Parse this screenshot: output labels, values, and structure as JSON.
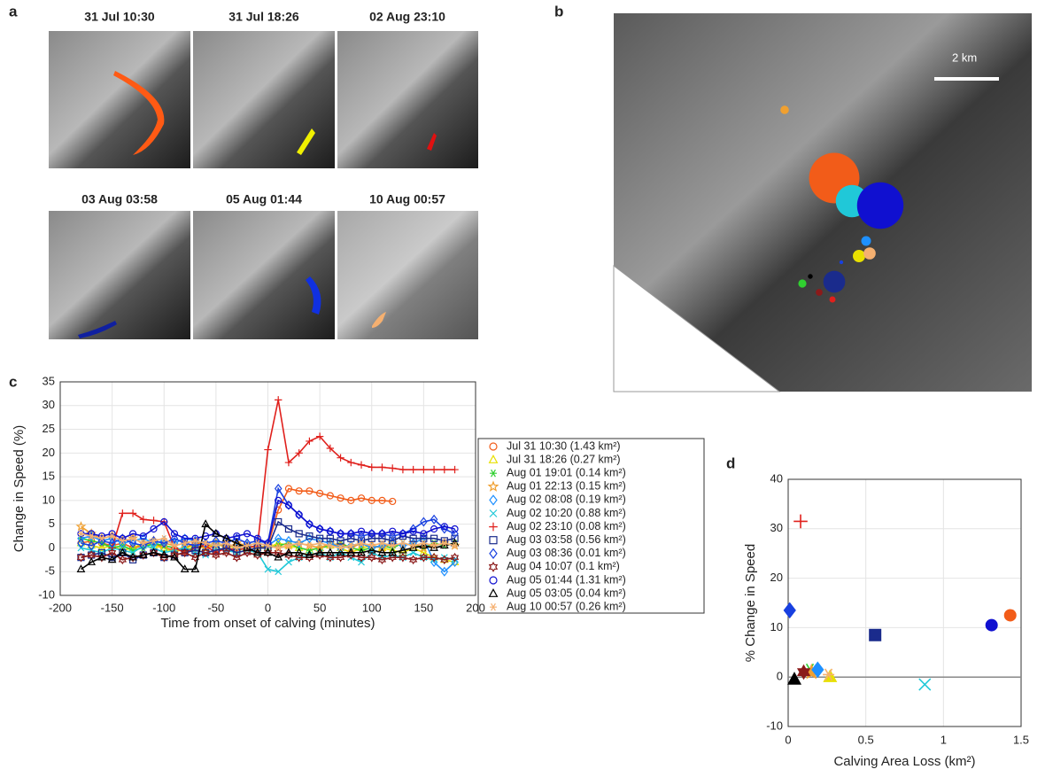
{
  "panel_a": {
    "label": "a",
    "titles": [
      "31 Jul 10:30",
      "31 Jul 18:26",
      "02 Aug 23:10",
      "03 Aug 03:58",
      "05 Aug 01:44",
      "10 Aug 00:57"
    ]
  },
  "panel_b": {
    "label": "b",
    "scale_label": "2 km"
  },
  "chart_data": [
    {
      "type": "line",
      "label": "c",
      "xlabel": "Time from onset of calving (minutes)",
      "ylabel": "Change in Speed (%)",
      "xlim": [
        -200,
        200
      ],
      "xticks": [
        -200,
        -150,
        -100,
        -50,
        0,
        50,
        100,
        150,
        200
      ],
      "ylim": [
        -10,
        35
      ],
      "yticks": [
        -10,
        -5,
        0,
        5,
        10,
        15,
        20,
        25,
        30,
        35
      ],
      "grid": true,
      "x": [
        -180,
        -170,
        -160,
        -150,
        -140,
        -130,
        -120,
        -110,
        -100,
        -90,
        -80,
        -70,
        -60,
        -50,
        -40,
        -30,
        -20,
        -10,
        0,
        10,
        20,
        30,
        40,
        50,
        60,
        70,
        80,
        90,
        100,
        110,
        120,
        130,
        140,
        150,
        160,
        170,
        180
      ],
      "series": [
        {
          "name": "Jul 31 10:30  (1.43 km²)",
          "color": "#f25c19",
          "marker": "circle",
          "values": [
            1,
            1.5,
            1,
            0.5,
            1,
            0,
            0.5,
            1,
            0,
            -0.5,
            0,
            1,
            0.5,
            0,
            -0.5,
            0,
            0.5,
            0,
            0.5,
            8,
            12.5,
            12,
            12,
            11.5,
            11,
            10.5,
            10,
            10.5,
            10,
            10,
            9.8,
            null,
            null,
            null,
            null,
            null,
            null
          ]
        },
        {
          "name": "Jul 31 18:26  (0.27 km²)",
          "color": "#e8e000",
          "marker": "triangle",
          "values": [
            1,
            0.5,
            0,
            0.5,
            -0.5,
            0,
            1,
            0.5,
            0,
            -1,
            0,
            0.5,
            0,
            1,
            0.5,
            0,
            -0.5,
            0,
            0,
            1,
            0.5,
            0,
            -0.5,
            0,
            0.5,
            0,
            -1,
            0,
            0.5,
            0,
            -0.5,
            -1,
            0,
            -1,
            -2,
            -2.5,
            -3
          ]
        },
        {
          "name": "Aug 01 19:01  (0.14 km²)",
          "color": "#30d030",
          "marker": "asterisk",
          "values": [
            2,
            1.5,
            1,
            0,
            0.5,
            -0.5,
            0,
            1,
            0.5,
            0,
            -0.5,
            0,
            0.5,
            1,
            0,
            -0.5,
            0,
            0.5,
            0,
            0.5,
            1,
            0,
            -0.5,
            0,
            0.5,
            1,
            0,
            -0.5,
            0,
            0.5,
            0,
            1,
            0.5,
            0,
            1,
            0.5,
            1
          ]
        },
        {
          "name": "Aug 01 22:13  (0.15 km²)",
          "color": "#f0a030",
          "marker": "pentagram",
          "values": [
            4.5,
            3,
            2,
            2.5,
            1.5,
            2,
            1,
            1.5,
            1,
            0.5,
            1,
            1.5,
            0.5,
            1,
            0,
            1,
            0.5,
            0,
            0.5,
            0,
            0.5,
            1,
            0.5,
            0,
            1,
            0.5,
            0,
            1,
            0.5,
            0,
            1,
            0.5,
            1,
            0,
            0.5,
            1,
            0.5
          ]
        },
        {
          "name": "Aug 02 08:08  (0.19 km²)",
          "color": "#1e90ff",
          "marker": "diamond",
          "values": [
            2,
            2.5,
            1.5,
            2,
            1,
            1.5,
            2,
            1,
            1.5,
            1,
            2,
            1.5,
            1,
            0.5,
            1,
            0,
            0.5,
            1,
            0.5,
            2,
            1.5,
            1,
            2,
            1.5,
            1,
            0,
            0.5,
            1,
            0,
            0.5,
            1,
            0.5,
            1,
            2,
            -3,
            -5,
            -3
          ]
        },
        {
          "name": "Aug 02 10:20  (0.88 km²)",
          "color": "#20c8d8",
          "marker": "x",
          "values": [
            0,
            -0.5,
            -1,
            0,
            -0.5,
            -1,
            0.5,
            0,
            -1,
            -0.5,
            0,
            -1,
            -1.5,
            0,
            -0.5,
            -1,
            -0.5,
            -1,
            -4.5,
            -5,
            -3,
            -2,
            -1.5,
            -1,
            -2,
            -1,
            -2,
            -3,
            -1,
            -2,
            -1.5,
            -2,
            -1,
            -2,
            -2.5,
            -2,
            -2.5
          ]
        },
        {
          "name": "Aug 02 23:10  (0.08 km²)",
          "color": "#e0201c",
          "marker": "plus",
          "values": [
            null,
            null,
            null,
            0,
            7.3,
            7.3,
            6,
            5.8,
            5.5,
            0,
            -1,
            0,
            0.5,
            -1,
            0,
            -0.5,
            0,
            0.5,
            20.7,
            31.2,
            18,
            20,
            22.5,
            23.5,
            21,
            19,
            18,
            17.5,
            17,
            17,
            16.8,
            16.5,
            16.5,
            16.5,
            16.5,
            16.5,
            16.5
          ]
        },
        {
          "name": "Aug 03 03:58  (0.56 km²)",
          "color": "#1a2b8c",
          "marker": "square",
          "values": [
            -2,
            -1.5,
            -1,
            -2,
            -1,
            -2.5,
            -1.5,
            -1,
            -2,
            -1.5,
            -1,
            -0.5,
            -1,
            -0.5,
            0,
            -1,
            -0.5,
            0,
            0,
            5.5,
            4,
            3,
            2.5,
            2,
            2,
            1.5,
            2,
            1.5,
            2,
            2,
            1.5,
            2.5,
            2,
            2,
            2,
            1.5,
            2
          ]
        },
        {
          "name": "Aug 03 08:36  (0.01 km²)",
          "color": "#1840e0",
          "marker": "diamond",
          "values": [
            1,
            0.5,
            1.5,
            1,
            2,
            1,
            0.5,
            1.5,
            1,
            2,
            1,
            0.5,
            1,
            1.5,
            1,
            2,
            1,
            1.5,
            1,
            12.5,
            9,
            7,
            5,
            4,
            3.5,
            3,
            3,
            2.5,
            3,
            3,
            2.5,
            3,
            4,
            5.5,
            6,
            4,
            3
          ]
        },
        {
          "name": "Aug 04 10:07  (0.1 km²)",
          "color": "#8b1a1a",
          "marker": "hexagram",
          "values": [
            -2,
            -1.5,
            -2,
            -1,
            -2.5,
            -2,
            -1.5,
            -1,
            -2,
            -1.5,
            -1,
            -2,
            -1,
            -1.5,
            -1,
            -2,
            -1,
            -1.5,
            -1,
            -1,
            -1.5,
            -2,
            -2,
            -1.5,
            -2,
            -2,
            -1.5,
            -2,
            -2,
            -2.5,
            -2,
            -2,
            -2.5,
            -2,
            -2,
            -2.5,
            -2
          ]
        },
        {
          "name": "Aug 05 01:44  (1.31 km²)",
          "color": "#1010d0",
          "marker": "circle",
          "values": [
            3,
            3,
            2.5,
            3,
            2,
            3,
            2.5,
            4,
            5.5,
            3,
            2,
            2,
            2.5,
            3,
            2,
            2.5,
            3,
            2,
            1,
            10,
            9,
            7,
            5,
            4,
            3.5,
            3,
            3,
            3.5,
            3,
            3,
            3.5,
            3,
            3.5,
            3,
            4,
            4.5,
            4
          ]
        },
        {
          "name": "Aug 05 03:05  (0.04 km²)",
          "color": "#000000",
          "marker": "triangle",
          "values": [
            -4.5,
            -3,
            -2,
            -2.5,
            -1,
            -2,
            -1.5,
            -1,
            -1.5,
            -2,
            -4.5,
            -4.5,
            5,
            3,
            2,
            1,
            0,
            -1,
            -1,
            -2,
            -1,
            -1,
            -1.5,
            -1,
            -1,
            -1,
            -1,
            -1,
            -0.5,
            -1,
            -1,
            -0.5,
            0,
            0.5,
            0,
            0.5,
            1
          ]
        },
        {
          "name": "Aug 10 00:57  (0.26 km²)",
          "color": "#f5b070",
          "marker": "asterisk",
          "values": [
            3,
            2.5,
            2,
            2.5,
            1.5,
            2,
            1,
            1.5,
            2,
            0.5,
            1,
            1.5,
            1,
            0.5,
            1,
            0,
            0.5,
            1,
            0.5,
            0,
            0.5,
            1,
            0.5,
            1,
            0.5,
            0,
            0.5,
            1,
            0.5,
            1,
            0.5,
            1,
            0.5,
            1,
            0.5,
            1,
            0.5
          ]
        }
      ]
    },
    {
      "type": "scatter",
      "label": "d",
      "xlabel": "Calving Area Loss (km²)",
      "ylabel": "% Change in Speed",
      "xlim": [
        0,
        1.5
      ],
      "xticks": [
        0,
        0.5,
        1,
        1.5
      ],
      "ylim": [
        -10,
        40
      ],
      "yticks": [
        -10,
        0,
        10,
        20,
        30,
        40
      ],
      "grid": true,
      "x": [
        1.43,
        0.27,
        0.14,
        0.15,
        0.19,
        0.88,
        0.08,
        0.56,
        0.01,
        0.1,
        1.31,
        0.04,
        0.26
      ],
      "values": [
        12.5,
        0,
        1.5,
        1,
        1.5,
        -1.5,
        31.5,
        8.5,
        13.5,
        1,
        10.5,
        -0.5,
        0.5
      ],
      "colors": [
        "#f25c19",
        "#e8e000",
        "#30d030",
        "#f0a030",
        "#1e90ff",
        "#20c8d8",
        "#e0201c",
        "#1a2b8c",
        "#1840e0",
        "#8b1a1a",
        "#1010d0",
        "#000000",
        "#f5b070"
      ],
      "markers": [
        "circle",
        "triangle",
        "asterisk",
        "pentagram",
        "diamond",
        "x",
        "plus",
        "square",
        "diamond",
        "hexagram",
        "circle",
        "triangle",
        "asterisk"
      ]
    }
  ]
}
